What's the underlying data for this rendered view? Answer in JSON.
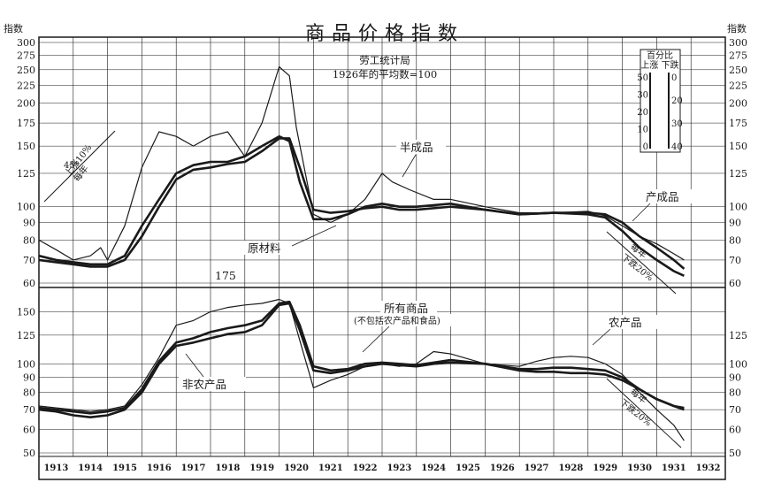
{
  "header": {
    "title": "商品价格指数",
    "subtitle_line1": "劳工统计局",
    "subtitle_line2": "1926年的平均数=100",
    "axis_unit_left": "指数",
    "axis_unit_right": "指数"
  },
  "inset": {
    "title_line1": "百分比",
    "title_line2": "上涨 下跌",
    "left_ticks": [
      "50",
      "30",
      "20",
      "10",
      "0"
    ],
    "right_ticks": [
      "0",
      "20",
      "30",
      "40"
    ]
  },
  "annotations": {
    "rise_line1": "上涨10%",
    "rise_line2": "每年",
    "rise_angle": "45°",
    "fall_top_line1": "每年",
    "fall_top_line2": "下跌20%",
    "fall_bottom_line1": "每年",
    "fall_bottom_line2": "下跌20%",
    "peak_label": "175",
    "all_line2": "(不包括农产品和食品)"
  },
  "colors": {
    "ink": "#1a1a1a",
    "paper": "#ffffff"
  },
  "chart_data": [
    {
      "type": "line",
      "panel": "top",
      "y_scale": "log",
      "ylim": [
        60,
        300
      ],
      "x_label_years": [
        "1913",
        "1914",
        "1915",
        "1916",
        "1917",
        "1918",
        "1919",
        "1920",
        "1921",
        "1922",
        "1923",
        "1924",
        "1925",
        "1926",
        "1927",
        "1928",
        "1929",
        "1930",
        "1931",
        "1932"
      ],
      "yticks_left": [
        60,
        70,
        80,
        90,
        100,
        125,
        150,
        175,
        200,
        225,
        250,
        275,
        300
      ],
      "yticks_right": [
        60,
        70,
        80,
        90,
        100,
        125,
        150,
        175,
        200,
        225,
        250,
        275,
        300
      ],
      "series": [
        {
          "name": "半成品",
          "style": "thin",
          "x": [
            1913.0,
            1913.5,
            1914.0,
            1914.5,
            1914.8,
            1915.0,
            1915.5,
            1916.0,
            1916.5,
            1917.0,
            1917.5,
            1918.0,
            1918.5,
            1919.0,
            1919.5,
            1920.0,
            1920.3,
            1920.5,
            1920.8,
            1921.0,
            1921.5,
            1922.0,
            1922.5,
            1923.0,
            1923.3,
            1923.8,
            1924.5,
            1925.0,
            1926.0,
            1927.0,
            1928.0,
            1929.0,
            1929.5,
            1930.0,
            1930.5,
            1931.0,
            1931.5,
            1931.8
          ],
          "y": [
            80,
            75,
            70,
            72,
            76,
            70,
            88,
            130,
            165,
            160,
            150,
            160,
            165,
            140,
            175,
            255,
            240,
            170,
            120,
            95,
            90,
            95,
            105,
            125,
            118,
            112,
            105,
            105,
            100,
            96,
            96,
            97,
            94,
            88,
            82,
            78,
            73,
            70
          ]
        },
        {
          "name": "原材料",
          "style": "bold",
          "x": [
            1913.0,
            1913.5,
            1914.0,
            1914.5,
            1915.0,
            1915.5,
            1916.0,
            1916.5,
            1917.0,
            1917.5,
            1918.0,
            1918.5,
            1919.0,
            1919.5,
            1920.0,
            1920.3,
            1920.6,
            1921.0,
            1921.5,
            1922.0,
            1922.5,
            1923.0,
            1923.5,
            1924.0,
            1925.0,
            1926.0,
            1927.0,
            1928.0,
            1929.0,
            1929.5,
            1930.0,
            1930.5,
            1931.0,
            1931.5,
            1931.8
          ],
          "y": [
            72,
            70,
            69,
            68,
            68,
            72,
            88,
            105,
            125,
            132,
            135,
            135,
            140,
            150,
            160,
            155,
            118,
            92,
            92,
            95,
            100,
            102,
            100,
            100,
            102,
            98,
            95,
            96,
            95,
            93,
            85,
            76,
            70,
            65,
            63
          ]
        },
        {
          "name": "产成品",
          "style": "bold",
          "x": [
            1913.0,
            1913.5,
            1914.0,
            1914.5,
            1915.0,
            1915.5,
            1916.0,
            1916.5,
            1917.0,
            1917.5,
            1918.0,
            1918.5,
            1919.0,
            1919.5,
            1920.0,
            1920.3,
            1920.6,
            1921.0,
            1921.5,
            1922.0,
            1922.5,
            1923.0,
            1923.5,
            1924.0,
            1925.0,
            1926.0,
            1927.0,
            1928.0,
            1929.0,
            1929.5,
            1930.0,
            1930.5,
            1931.0,
            1931.5,
            1931.8
          ],
          "y": [
            70,
            69,
            68,
            67,
            67,
            70,
            82,
            100,
            120,
            128,
            130,
            133,
            135,
            145,
            158,
            158,
            130,
            98,
            96,
            97,
            99,
            100,
            98,
            98,
            100,
            98,
            95,
            96,
            96,
            95,
            90,
            82,
            76,
            70,
            66
          ]
        }
      ]
    },
    {
      "type": "line",
      "panel": "bottom",
      "y_scale": "log",
      "ylim": [
        50,
        175
      ],
      "x_label_years": [
        "1913",
        "1914",
        "1915",
        "1916",
        "1917",
        "1918",
        "1919",
        "1920",
        "1921",
        "1922",
        "1923",
        "1924",
        "1925",
        "1926",
        "1927",
        "1928",
        "1929",
        "1930",
        "1931",
        "1932"
      ],
      "yticks_left": [
        50,
        60,
        70,
        80,
        90,
        100,
        125,
        150
      ],
      "yticks_right": [
        50,
        60,
        70,
        80,
        90,
        100,
        125
      ],
      "series": [
        {
          "name": "农产品",
          "style": "thin",
          "x": [
            1913.0,
            1913.5,
            1914.0,
            1914.5,
            1915.0,
            1915.5,
            1916.0,
            1916.5,
            1917.0,
            1917.5,
            1918.0,
            1918.5,
            1919.0,
            1919.5,
            1920.0,
            1920.3,
            1920.6,
            1921.0,
            1921.5,
            1922.0,
            1922.5,
            1923.0,
            1923.5,
            1924.0,
            1924.5,
            1925.0,
            1926.0,
            1927.0,
            1927.5,
            1928.0,
            1928.5,
            1929.0,
            1929.5,
            1930.0,
            1930.5,
            1931.0,
            1931.5,
            1931.8
          ],
          "y": [
            72,
            71,
            70,
            69,
            70,
            72,
            85,
            105,
            135,
            140,
            150,
            155,
            158,
            160,
            165,
            160,
            120,
            83,
            88,
            92,
            98,
            100,
            98,
            100,
            110,
            108,
            100,
            98,
            102,
            105,
            106,
            105,
            100,
            92,
            80,
            70,
            62,
            55
          ]
        },
        {
          "name": "所有商品",
          "style": "bold",
          "x": [
            1913.0,
            1913.5,
            1914.0,
            1914.5,
            1915.0,
            1915.5,
            1916.0,
            1916.5,
            1917.0,
            1917.5,
            1918.0,
            1918.5,
            1919.0,
            1919.5,
            1920.0,
            1920.3,
            1920.6,
            1921.0,
            1921.5,
            1922.0,
            1922.5,
            1923.0,
            1923.5,
            1924.0,
            1924.5,
            1925.0,
            1926.0,
            1927.0,
            1927.5,
            1928.0,
            1928.5,
            1929.0,
            1929.5,
            1930.0,
            1930.5,
            1931.0,
            1931.5,
            1931.8
          ],
          "y": [
            71,
            70,
            69,
            68,
            69,
            71,
            82,
            102,
            118,
            122,
            128,
            132,
            135,
            140,
            160,
            162,
            135,
            98,
            95,
            96,
            100,
            101,
            100,
            99,
            101,
            103,
            100,
            96,
            96,
            97,
            97,
            96,
            95,
            90,
            82,
            76,
            72,
            70
          ]
        },
        {
          "name": "非农产品",
          "style": "bold",
          "x": [
            1913.0,
            1913.5,
            1914.0,
            1914.5,
            1915.0,
            1915.5,
            1916.0,
            1916.5,
            1917.0,
            1917.5,
            1918.0,
            1918.5,
            1919.0,
            1919.5,
            1920.0,
            1920.3,
            1920.6,
            1921.0,
            1921.5,
            1922.0,
            1922.5,
            1923.0,
            1923.5,
            1924.0,
            1924.5,
            1925.0,
            1926.0,
            1927.0,
            1927.5,
            1928.0,
            1928.5,
            1929.0,
            1929.5,
            1930.0,
            1930.5,
            1931.0,
            1931.5,
            1931.8
          ],
          "y": [
            70,
            69,
            67,
            66,
            67,
            70,
            80,
            100,
            115,
            118,
            122,
            126,
            128,
            135,
            158,
            160,
            130,
            95,
            93,
            95,
            98,
            100,
            99,
            98,
            100,
            101,
            100,
            95,
            94,
            94,
            93,
            93,
            92,
            88,
            82,
            76,
            72,
            71
          ]
        }
      ]
    }
  ]
}
